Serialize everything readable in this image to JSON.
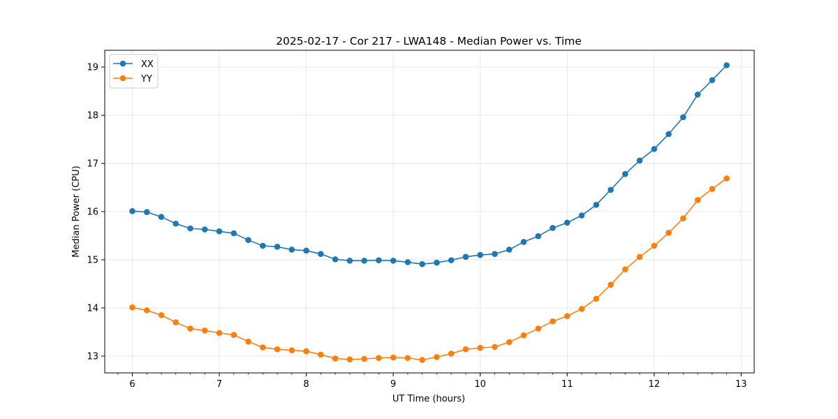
{
  "chart_data": {
    "type": "line",
    "title": "2025-02-17 - Cor 217 - LWA148 - Median Power vs. Time",
    "xlabel": "UT Time (hours)",
    "ylabel": "Median Power (CPU)",
    "xlim": [
      5.683,
      13.15
    ],
    "ylim": [
      12.65,
      19.35
    ],
    "xticks": [
      6,
      7,
      8,
      9,
      10,
      11,
      12,
      13
    ],
    "yticks": [
      13,
      14,
      15,
      16,
      17,
      18,
      19
    ],
    "x_minor_step": 0.1666667,
    "grid": true,
    "legend_position": "top-left",
    "x": [
      6.0,
      6.1667,
      6.3333,
      6.5,
      6.6667,
      6.8333,
      7.0,
      7.1667,
      7.3333,
      7.5,
      7.6667,
      7.8333,
      8.0,
      8.1667,
      8.3333,
      8.5,
      8.6667,
      8.8333,
      9.0,
      9.1667,
      9.3333,
      9.5,
      9.6667,
      9.8333,
      10.0,
      10.1667,
      10.3333,
      10.5,
      10.6667,
      10.8333,
      11.0,
      11.1667,
      11.3333,
      11.5,
      11.6667,
      11.8333,
      12.0,
      12.1667,
      12.3333,
      12.5,
      12.6667,
      12.8333
    ],
    "series": [
      {
        "name": "XX",
        "color": "#1f77b4",
        "values": [
          16.01,
          15.99,
          15.89,
          15.75,
          15.65,
          15.63,
          15.59,
          15.55,
          15.41,
          15.29,
          15.27,
          15.21,
          15.19,
          15.12,
          15.01,
          14.98,
          14.98,
          14.99,
          14.98,
          14.95,
          14.91,
          14.94,
          14.99,
          15.06,
          15.1,
          15.12,
          15.21,
          15.37,
          15.49,
          15.66,
          15.77,
          15.92,
          16.14,
          16.45,
          16.78,
          17.06,
          17.3,
          17.61,
          17.96,
          18.43,
          18.73,
          19.04
        ]
      },
      {
        "name": "YY",
        "color": "#ff7f0e",
        "values": [
          14.01,
          13.95,
          13.85,
          13.7,
          13.57,
          13.53,
          13.48,
          13.44,
          13.3,
          13.18,
          13.14,
          13.12,
          13.1,
          13.03,
          12.95,
          12.93,
          12.94,
          12.96,
          12.97,
          12.96,
          12.92,
          12.98,
          13.05,
          13.14,
          13.17,
          13.19,
          13.29,
          13.43,
          13.57,
          13.72,
          13.83,
          13.98,
          14.19,
          14.48,
          14.8,
          15.06,
          15.29,
          15.56,
          15.86,
          16.24,
          16.47,
          16.69
        ]
      }
    ]
  }
}
